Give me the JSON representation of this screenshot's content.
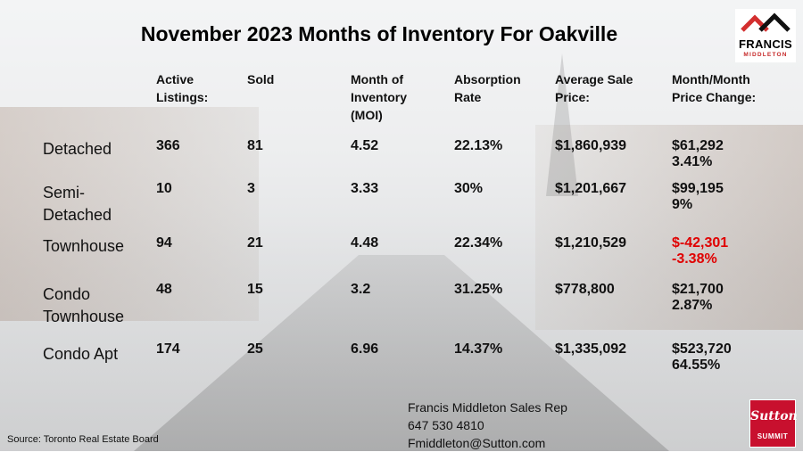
{
  "title": "November 2023 Months of Inventory For Oakville",
  "logo": {
    "name": "FRANCIS",
    "sub": "MIDDLETON"
  },
  "headers": {
    "active": "Active\nListings:",
    "sold": "Sold",
    "moi": "Month of\nInventory\n(MOI)",
    "absorption": "Absorption\nRate",
    "avg_price": "Average Sale\nPrice:",
    "change": "Month/Month\nPrice Change:"
  },
  "rows": [
    {
      "label": "Detached",
      "active": "366",
      "sold": "81",
      "moi": "4.52",
      "absorption": "22.13%",
      "avg_price": "$1,860,939",
      "change": "$61,292\n3.41%"
    },
    {
      "label": "Semi-\nDetached",
      "active": "10",
      "sold": "3",
      "moi": "3.33",
      "absorption": "30%",
      "avg_price": "$1,201,667",
      "change": "$99,195\n9%"
    },
    {
      "label": "Townhouse",
      "active": "94",
      "sold": "21",
      "moi": "4.48",
      "absorption": "22.34%",
      "avg_price": "$1,210,529",
      "change": "$-42,301\n-3.38%"
    },
    {
      "label": "Condo\nTownhouse",
      "active": "48",
      "sold": "15",
      "moi": "3.2",
      "absorption": "31.25%",
      "avg_price": "$778,800",
      "change": "$21,700\n2.87%"
    },
    {
      "label": "Condo Apt",
      "active": "174",
      "sold": "25",
      "moi": "6.96",
      "absorption": "14.37%",
      "avg_price": "$1,335,092",
      "change": "$523,720\n64.55%"
    }
  ],
  "contact": {
    "name": "Francis Middleton Sales Rep",
    "phone": "647 530 4810",
    "email": "Fmiddleton@Sutton.com"
  },
  "source": "Source: Toronto Real Estate Board",
  "brand": {
    "name": "Sutton",
    "sub": "SUMMIT",
    "color": "#c8102e"
  },
  "colors": {
    "negative": "#e00000"
  }
}
